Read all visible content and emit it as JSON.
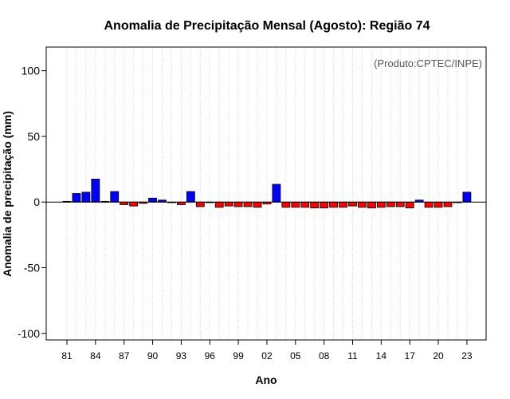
{
  "chart_data": {
    "type": "bar",
    "title": "Anomalia de Precipitação Mensal (Agosto): Região 74",
    "xlabel": "Ano",
    "ylabel": "Anomalia de precipitação (mm)",
    "annotation": "(Produto:CPTEC/INPE)",
    "ylim": [
      -105,
      118
    ],
    "yticks": [
      -100,
      -50,
      0,
      50,
      100
    ],
    "xtick_labels": [
      "81",
      "84",
      "87",
      "90",
      "93",
      "96",
      "99",
      "02",
      "05",
      "08",
      "11",
      "14",
      "17",
      "20",
      "23"
    ],
    "categories": [
      "1981",
      "1982",
      "1983",
      "1984",
      "1985",
      "1986",
      "1987",
      "1988",
      "1989",
      "1990",
      "1991",
      "1992",
      "1993",
      "1994",
      "1995",
      "1996",
      "1997",
      "1998",
      "1999",
      "2000",
      "2001",
      "2002",
      "2003",
      "2004",
      "2005",
      "2006",
      "2007",
      "2008",
      "2009",
      "2010",
      "2011",
      "2012",
      "2013",
      "2014",
      "2015",
      "2016",
      "2017",
      "2018",
      "2019",
      "2020",
      "2021",
      "2022",
      "2023"
    ],
    "values": [
      0.5,
      6.5,
      7.5,
      17.5,
      0.5,
      8,
      -2,
      -3,
      -1,
      3,
      1.5,
      0,
      -2,
      8,
      -3.5,
      0,
      -4,
      -3,
      -3.5,
      -3.5,
      -4,
      -1.5,
      13.5,
      -4,
      -4,
      -4,
      -4.5,
      -4.5,
      -4,
      -4,
      -3,
      -4,
      -4.5,
      -4,
      -3.5,
      -3.5,
      -4.5,
      1.5,
      -4,
      -4,
      -3.5,
      0,
      7.5
    ],
    "colors": {
      "positive": "#0000ff",
      "negative": "#ff0000",
      "edge": "#000000",
      "grid": "#d3d3d3"
    },
    "grid": "vertical-dotted",
    "zero_line": true
  }
}
